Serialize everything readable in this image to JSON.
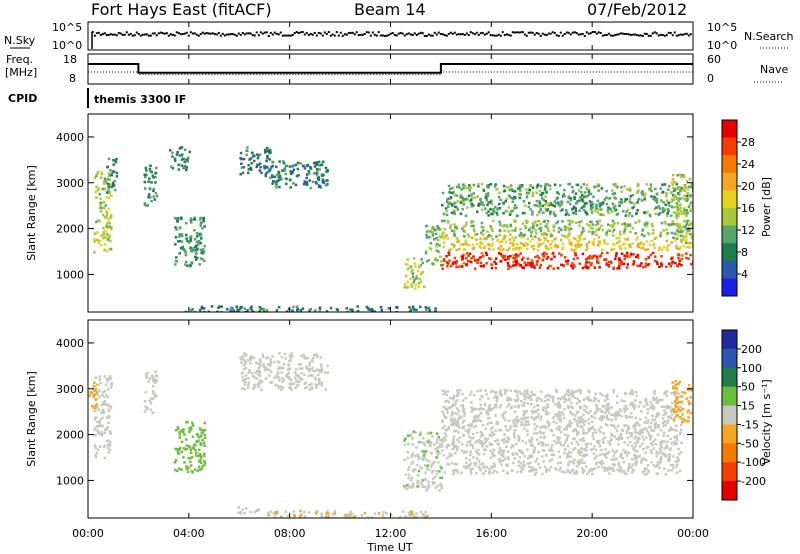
{
  "header": {
    "station": "Fort Hays East (fitACF)",
    "beam": "Beam 14",
    "date": "07/Feb/2012"
  },
  "top_panels": {
    "nsky_label": "N.Sky",
    "nsearch_label": "N.Search",
    "nsky_ticks": [
      "10^5",
      "10^0"
    ],
    "freq_label_1": "Freq.",
    "freq_label_2": "[MHz]",
    "freq_ticks": [
      "18",
      "8"
    ],
    "nave_label": "Nave",
    "nave_ticks": [
      "60",
      "0"
    ],
    "cpid_label": "CPID",
    "cpid_text": "themis 3300 IF"
  },
  "power_colorbar": {
    "label": "Power [dB]",
    "ticks": [
      "28",
      "24",
      "20",
      "16",
      "12",
      "8",
      "4"
    ],
    "colors": [
      "#e60000",
      "#f53c00",
      "#f57a00",
      "#f5a623",
      "#e8d21e",
      "#a8c83a",
      "#56a56a",
      "#1e7d4a",
      "#2a58b0",
      "#1a1ee6"
    ]
  },
  "velocity_colorbar": {
    "label": "Velocity [m s⁻¹]",
    "ticks": [
      "200",
      "100",
      "50",
      "15",
      "-15",
      "-50",
      "-100",
      "-200"
    ],
    "colors": [
      "#1e2a9e",
      "#2a58b0",
      "#1e7d4a",
      "#6cbf3a",
      "#c8c8c0",
      "#f5a623",
      "#f57a00",
      "#f53c00",
      "#e60000"
    ]
  },
  "chart_data": {
    "type": "heatmap",
    "xlabel": "Time UT",
    "ylabel": "Slant Range [km]",
    "x_ticks": [
      "00:00",
      "04:00",
      "08:00",
      "12:00",
      "16:00",
      "20:00",
      "00:00"
    ],
    "y_ticks": [
      "1000",
      "2000",
      "3000",
      "4000"
    ],
    "xlim_hours": [
      0,
      24
    ],
    "ylim_km": [
      180,
      4500
    ],
    "frequency_MHz": [
      {
        "start": 0.0,
        "end": 2.0,
        "value": 14
      },
      {
        "start": 2.0,
        "end": 14.0,
        "value": 10.5
      },
      {
        "start": 14.0,
        "end": 24.0,
        "value": 14
      }
    ],
    "nave_dotted": [
      {
        "start": 0.0,
        "end": 2.0,
        "value": 28
      },
      {
        "start": 2.0,
        "end": 14.0,
        "value": 22
      },
      {
        "start": 14.0,
        "end": 24.0,
        "value": 28
      }
    ],
    "power_regions": [
      {
        "t0": 0.2,
        "t1": 0.9,
        "r0": 1500,
        "r1": 3300,
        "p": 15
      },
      {
        "t0": 0.7,
        "t1": 1.1,
        "r0": 2800,
        "r1": 3600,
        "p": 9
      },
      {
        "t0": 2.2,
        "t1": 2.7,
        "r0": 2500,
        "r1": 3400,
        "p": 9
      },
      {
        "t0": 3.4,
        "t1": 4.6,
        "r0": 1200,
        "r1": 2300,
        "p": 10
      },
      {
        "t0": 3.2,
        "t1": 4.0,
        "r0": 3300,
        "r1": 3800,
        "p": 9
      },
      {
        "t0": 6.0,
        "t1": 7.2,
        "r0": 3200,
        "r1": 3800,
        "p": 7
      },
      {
        "t0": 7.0,
        "t1": 9.5,
        "r0": 2900,
        "r1": 3500,
        "p": 8
      },
      {
        "t0": 12.5,
        "t1": 13.3,
        "r0": 700,
        "r1": 1400,
        "p": 15
      },
      {
        "t0": 13.3,
        "t1": 14.0,
        "r0": 1200,
        "r1": 2100,
        "p": 13
      },
      {
        "t0": 14.0,
        "t1": 24.0,
        "r0": 2300,
        "r1": 3000,
        "p": 11
      },
      {
        "t0": 14.0,
        "t1": 24.0,
        "r0": 1850,
        "r1": 2200,
        "p": 13
      },
      {
        "t0": 14.0,
        "t1": 24.0,
        "r0": 1550,
        "r1": 1850,
        "p": 18
      },
      {
        "t0": 14.0,
        "t1": 24.0,
        "r0": 1150,
        "r1": 1500,
        "p": 28
      },
      {
        "t0": 23.1,
        "t1": 23.9,
        "r0": 1700,
        "r1": 3200,
        "p": 14
      },
      {
        "t0": 3.8,
        "t1": 13.8,
        "r0": 200,
        "r1": 330,
        "p": 8
      }
    ],
    "velocity_regions": [
      {
        "t0": 0.2,
        "t1": 0.9,
        "r0": 1500,
        "r1": 3300,
        "v": 0
      },
      {
        "t0": 0.0,
        "t1": 0.4,
        "r0": 2600,
        "r1": 3200,
        "v": -70
      },
      {
        "t0": 2.2,
        "t1": 2.7,
        "r0": 2500,
        "r1": 3400,
        "v": -5
      },
      {
        "t0": 3.4,
        "t1": 4.6,
        "r0": 1200,
        "r1": 2300,
        "v": 60
      },
      {
        "t0": 6.0,
        "t1": 9.5,
        "r0": 3000,
        "r1": 3800,
        "v": 0
      },
      {
        "t0": 12.5,
        "t1": 14.0,
        "r0": 800,
        "r1": 2100,
        "v": 20
      },
      {
        "t0": 14.0,
        "t1": 23.5,
        "r0": 1150,
        "r1": 3000,
        "v": 0
      },
      {
        "t0": 23.1,
        "t1": 23.9,
        "r0": 2300,
        "r1": 3200,
        "v": -60
      },
      {
        "t0": 7.0,
        "t1": 13.5,
        "r0": 200,
        "r1": 360,
        "v": -30
      },
      {
        "t0": 5.8,
        "t1": 6.8,
        "r0": 300,
        "r1": 450,
        "v": 20
      }
    ]
  }
}
